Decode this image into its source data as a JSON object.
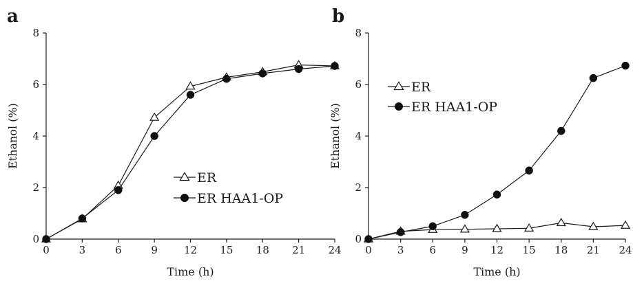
{
  "chart_data": [
    {
      "panel_label": "a",
      "type": "line",
      "xlabel": "Time (h)",
      "ylabel": "Ethanol (%)",
      "x": [
        0,
        3,
        6,
        9,
        12,
        15,
        18,
        21,
        24
      ],
      "xticks": [
        "0",
        "3",
        "6",
        "9",
        "12",
        "15",
        "18",
        "21",
        "24"
      ],
      "yticks": [
        "0",
        "2",
        "4",
        "6",
        "8"
      ],
      "xlim": [
        0,
        24
      ],
      "ylim": [
        0,
        8
      ],
      "legend_position": "lower-right",
      "series": [
        {
          "name": "ER",
          "marker": "open-triangle",
          "values": [
            0,
            0.78,
            2.08,
            4.72,
            5.93,
            6.28,
            6.49,
            6.76,
            6.72
          ]
        },
        {
          "name": "ER HAA1-OP",
          "marker": "filled-circle",
          "values": [
            0,
            0.8,
            1.9,
            4.0,
            5.6,
            6.22,
            6.43,
            6.6,
            6.72
          ]
        }
      ]
    },
    {
      "panel_label": "b",
      "type": "line",
      "xlabel": "Time (h)",
      "ylabel": "Ethanol (%)",
      "x": [
        0,
        3,
        6,
        9,
        12,
        15,
        18,
        21,
        24
      ],
      "xticks": [
        "0",
        "3",
        "6",
        "9",
        "12",
        "15",
        "18",
        "21",
        "24"
      ],
      "yticks": [
        "0",
        "2",
        "4",
        "6",
        "8"
      ],
      "xlim": [
        0,
        24
      ],
      "ylim": [
        0,
        8
      ],
      "legend_position": "upper-left",
      "series": [
        {
          "name": "ER",
          "marker": "open-triangle",
          "values": [
            0,
            0.3,
            0.37,
            0.38,
            0.4,
            0.42,
            0.63,
            0.48,
            0.53
          ]
        },
        {
          "name": "ER HAA1-OP",
          "marker": "filled-circle",
          "values": [
            0,
            0.27,
            0.5,
            0.94,
            1.73,
            2.66,
            4.2,
            6.25,
            6.73
          ]
        }
      ]
    }
  ]
}
